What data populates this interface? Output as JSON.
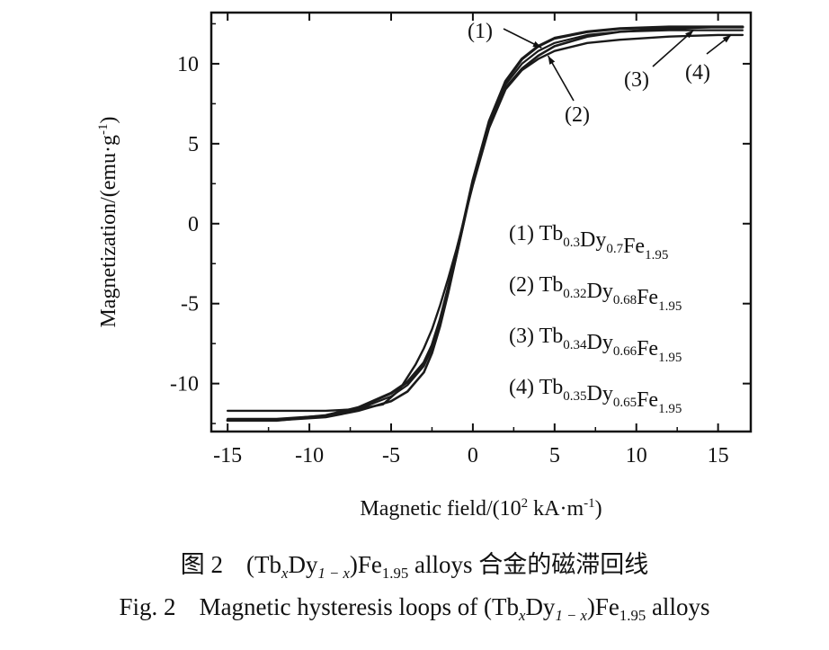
{
  "chart_data": {
    "type": "line",
    "title": "",
    "xlabel": "Magnetic field/(10² kA·m⁻¹)",
    "ylabel": "Magnetization/(emu·g⁻¹)",
    "xlim": [
      -16,
      17
    ],
    "ylim": [
      -13,
      13.2
    ],
    "x_ticks": [
      -15,
      -10,
      -5,
      0,
      5,
      10,
      15
    ],
    "y_ticks": [
      10,
      5,
      0,
      -5,
      -10
    ],
    "grid": false,
    "legend_position": "right-middle",
    "series": [
      {
        "name": "(1) Tb0.3Dy0.7Fe1.95",
        "label_text": "(1)",
        "x": [
          -15,
          -12,
          -9,
          -7,
          -5,
          -4,
          -3,
          -2.5,
          -2,
          -1.5,
          -1,
          0,
          1,
          2,
          3,
          4,
          5,
          7,
          9,
          12,
          15,
          16.5
        ],
        "y": [
          -12.3,
          -12.3,
          -12.0,
          -11.5,
          -10.6,
          -9.9,
          -8.7,
          -7.6,
          -6.0,
          -4.0,
          -1.9,
          2.7,
          6.4,
          8.9,
          10.3,
          11.1,
          11.6,
          12.0,
          12.2,
          12.3,
          12.3,
          12.3
        ]
      },
      {
        "name": "(2) Tb0.32Dy0.68Fe1.95",
        "label_text": "(2)",
        "x": [
          -15,
          -12,
          -9,
          -7,
          -5,
          -4,
          -3,
          -2.5,
          -2,
          -1.5,
          -1,
          0,
          1,
          2,
          3,
          4,
          5,
          7,
          9,
          12,
          15,
          16.5
        ],
        "y": [
          -12.3,
          -12.3,
          -12.1,
          -11.7,
          -11.1,
          -10.5,
          -9.3,
          -8.1,
          -6.4,
          -4.3,
          -2.0,
          2.6,
          6.2,
          8.5,
          9.7,
          10.5,
          11.1,
          11.7,
          12.0,
          12.2,
          12.3,
          12.3
        ]
      },
      {
        "name": "(3) Tb0.34Dy0.66Fe1.95",
        "label_text": "(3)",
        "x": [
          -15,
          -12,
          -9,
          -7,
          -5,
          -4,
          -3,
          -2.5,
          -2,
          -1.5,
          -1,
          0,
          1,
          2,
          3,
          4,
          5,
          7,
          9,
          12,
          15,
          16.5
        ],
        "y": [
          -12.2,
          -12.2,
          -12.0,
          -11.6,
          -10.8,
          -10.1,
          -8.9,
          -7.8,
          -6.1,
          -4.1,
          -1.9,
          2.6,
          6.3,
          8.7,
          10.0,
          10.8,
          11.3,
          11.8,
          12.0,
          12.1,
          12.1,
          12.1
        ]
      },
      {
        "name": "(4) Tb0.35Dy0.65Fe1.95",
        "label_text": "(4)",
        "x": [
          -15,
          -12,
          -9,
          -7,
          -5.5,
          -4.5,
          -3.5,
          -3,
          -2.5,
          -2,
          -1.5,
          -1,
          0,
          1,
          2,
          3,
          4,
          5,
          7,
          9,
          12,
          15,
          16.5
        ],
        "y": [
          -11.7,
          -11.7,
          -11.7,
          -11.6,
          -11.3,
          -10.4,
          -8.8,
          -7.8,
          -6.6,
          -5.1,
          -3.4,
          -1.6,
          2.4,
          6.0,
          8.4,
          9.6,
          10.3,
          10.8,
          11.3,
          11.5,
          11.7,
          11.8,
          11.8
        ]
      }
    ],
    "legend": {
      "entries": [
        {
          "index": "(1) ",
          "parts": [
            [
              "Tb",
              "0.3"
            ],
            [
              "Dy",
              "0.7"
            ],
            [
              "Fe",
              "1.95"
            ]
          ]
        },
        {
          "index": "(2) ",
          "parts": [
            [
              "Tb",
              "0.32"
            ],
            [
              "Dy",
              "0.68"
            ],
            [
              "Fe",
              "1.95"
            ]
          ]
        },
        {
          "index": "(3) ",
          "parts": [
            [
              "Tb",
              "0.34"
            ],
            [
              "Dy",
              "0.66"
            ],
            [
              "Fe",
              "1.95"
            ]
          ]
        },
        {
          "index": "(4) ",
          "parts": [
            [
              "Tb",
              "0.35"
            ],
            [
              "Dy",
              "0.65"
            ],
            [
              "Fe",
              "1.95"
            ]
          ]
        }
      ]
    },
    "axis_title": {
      "x_main": "Magnetic field/(10",
      "x_sup1": "2",
      "x_mid": " kA·m",
      "x_sup2": "-1",
      "x_end": ")",
      "y_main": "Magnetization/(emu·g",
      "y_sup": "-1",
      "y_end": ")"
    }
  },
  "caption_cn": {
    "fig": "图 2",
    "pre": "(Tb",
    "x": "x",
    "dy": "Dy",
    "one_minus_x": "1 − x",
    "fe": ")Fe",
    "fe_sub": "1.95",
    "tail": " alloys 合金的磁滞回线"
  },
  "caption_en": {
    "fig": "Fig. 2",
    "pre": "Magnetic hysteresis loops of (Tb",
    "x": "x",
    "dy": "Dy",
    "one_minus_x": "1 − x",
    "fe": ")Fe",
    "fe_sub": "1.95",
    "tail": " alloys"
  },
  "colors": {
    "curves": "#1a1a1a",
    "axis": "#111111"
  }
}
